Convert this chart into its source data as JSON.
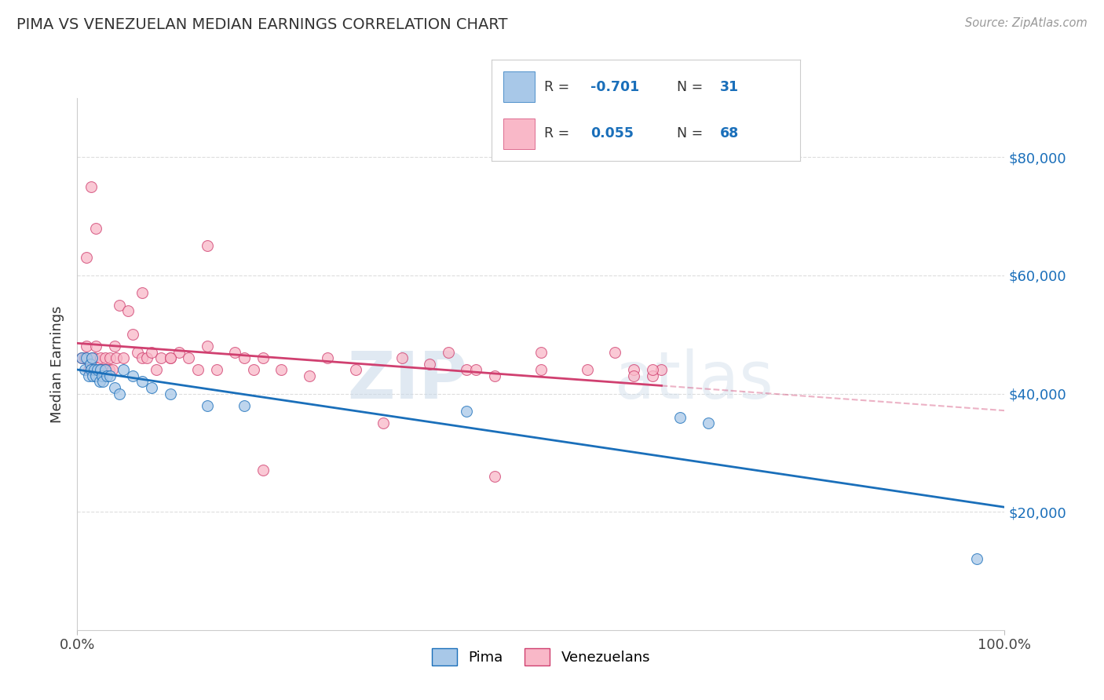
{
  "title": "PIMA VS VENEZUELAN MEDIAN EARNINGS CORRELATION CHART",
  "source": "Source: ZipAtlas.com",
  "ylabel": "Median Earnings",
  "watermark_zip": "ZIP",
  "watermark_atlas": "atlas",
  "pima_color": "#a8c8e8",
  "pima_line_color": "#1a6fba",
  "venezuelan_color": "#f9b8c8",
  "venezuelan_line_color": "#d04070",
  "y_ticks": [
    20000,
    40000,
    60000,
    80000
  ],
  "y_tick_labels": [
    "$20,000",
    "$40,000",
    "$60,000",
    "$80,000"
  ],
  "xlim": [
    0,
    100
  ],
  "ylim": [
    0,
    90000
  ],
  "legend_r1": "-0.701",
  "legend_n1": "31",
  "legend_r2": "0.055",
  "legend_n2": "68",
  "pima_x": [
    0.5,
    0.8,
    1.0,
    1.2,
    1.4,
    1.5,
    1.6,
    1.7,
    1.8,
    2.0,
    2.2,
    2.4,
    2.5,
    2.7,
    2.8,
    3.0,
    3.2,
    3.5,
    4.0,
    4.5,
    5.0,
    6.0,
    7.0,
    8.0,
    10.0,
    14.0,
    18.0,
    42.0,
    65.0,
    68.0,
    97.0
  ],
  "pima_y": [
    46000,
    44000,
    46000,
    43000,
    45000,
    44000,
    46000,
    43000,
    44000,
    43000,
    44000,
    42000,
    44000,
    43000,
    42000,
    44000,
    43000,
    43000,
    41000,
    40000,
    44000,
    43000,
    42000,
    41000,
    40000,
    38000,
    38000,
    37000,
    36000,
    35000,
    12000
  ],
  "venezuelan_x": [
    0.5,
    0.8,
    1.0,
    1.2,
    1.4,
    1.5,
    1.6,
    1.8,
    2.0,
    2.2,
    2.4,
    2.5,
    2.6,
    2.8,
    3.0,
    3.2,
    3.4,
    3.5,
    3.8,
    4.0,
    4.2,
    4.5,
    5.0,
    5.5,
    6.0,
    6.5,
    7.0,
    7.5,
    8.0,
    8.5,
    9.0,
    10.0,
    11.0,
    12.0,
    13.0,
    14.0,
    15.0,
    17.0,
    18.0,
    19.0,
    20.0,
    22.0,
    25.0,
    27.0,
    30.0,
    35.0,
    38.0,
    40.0,
    42.0,
    43.0,
    45.0,
    50.0,
    55.0,
    60.0,
    62.0,
    63.0,
    1.0,
    2.0,
    7.0,
    10.0,
    14.0,
    20.0,
    33.0,
    45.0,
    50.0,
    58.0,
    60.0,
    62.0
  ],
  "venezuelan_y": [
    46000,
    46000,
    48000,
    44000,
    44000,
    75000,
    46000,
    46000,
    48000,
    44000,
    44000,
    46000,
    44000,
    44000,
    46000,
    44000,
    44000,
    46000,
    44000,
    48000,
    46000,
    55000,
    46000,
    54000,
    50000,
    47000,
    46000,
    46000,
    47000,
    44000,
    46000,
    46000,
    47000,
    46000,
    44000,
    48000,
    44000,
    47000,
    46000,
    44000,
    46000,
    44000,
    43000,
    46000,
    44000,
    46000,
    45000,
    47000,
    44000,
    44000,
    43000,
    47000,
    44000,
    44000,
    43000,
    44000,
    63000,
    68000,
    57000,
    46000,
    65000,
    27000,
    35000,
    26000,
    44000,
    47000,
    43000,
    44000
  ]
}
